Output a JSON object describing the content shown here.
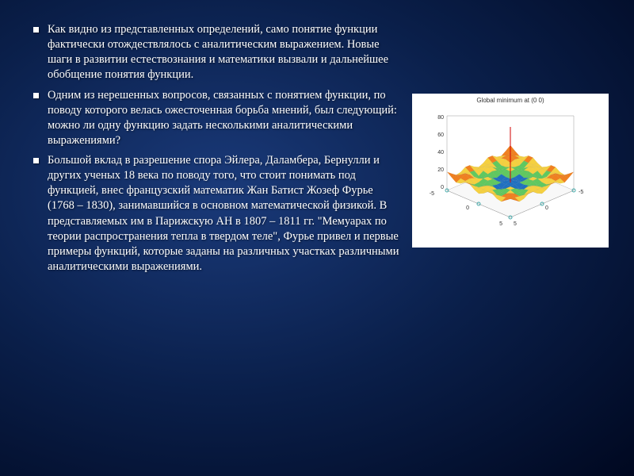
{
  "bullets": [
    "Как видно из представленных определений, само понятие функции фактически отождествлялось с аналитическим выражением. Новые шаги в развитии естествознания и математики вызвали и дальнейшее обобщение понятия функции.",
    "Одним из нерешенных вопросов, связанных с понятием функции, по поводу которого велась ожесточенная борьба мнений, был следующий: можно ли одну функцию задать несколькими аналитическими выражениями?",
    "Большой вклад в разрешение спора Эйлера, Даламбера, Бернулли и других ученых 18 века по поводу того, что стоит понимать под функцией, внес французский математик Жан Батист Жозеф Фурье (1768 – 1830), занимавшийся в основном математической физикой. В представляемых им в Парижскую АН в 1807 – 1811 гг. \"Мемуарах по теории распространения тепла в твердом теле\", Фурье привел и первые примеры функций, которые заданы на различных участках различными аналитическими выражениями."
  ],
  "chart": {
    "title": "Global minimum at (0  0)",
    "background": "#ffffff",
    "z_ticks": [
      "80",
      "60",
      "40",
      "20",
      "0"
    ],
    "x_ticks": [
      "-5",
      "0",
      "5"
    ],
    "y_ticks": [
      "-5",
      "0",
      "5"
    ],
    "surface_colors": {
      "top": "#d92626",
      "upper": "#f08020",
      "mid": "#f5d040",
      "lower": "#60c860",
      "bottom": "#2070c0"
    },
    "axis_color": "#333333",
    "tick_font_size": 7
  }
}
